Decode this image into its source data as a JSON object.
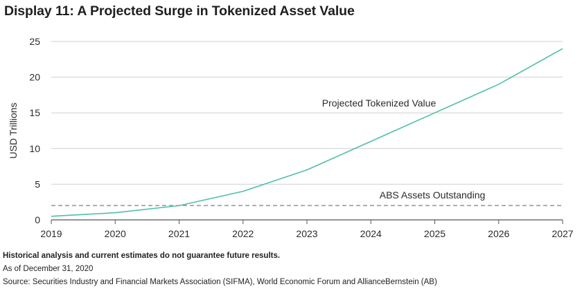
{
  "title": "Display 11: A Projected Surge in Tokenized Asset Value",
  "chart_data": {
    "type": "line",
    "title": "Display 11: A Projected Surge in Tokenized Asset Value",
    "xlabel": "",
    "ylabel": "USD Trillions",
    "x": [
      2019,
      2020,
      2021,
      2022,
      2023,
      2024,
      2025,
      2026,
      2027
    ],
    "xlim": [
      2019,
      2027
    ],
    "ylim": [
      0,
      25
    ],
    "yticks": [
      0,
      5,
      10,
      15,
      20,
      25
    ],
    "grid": "horizontal",
    "series": [
      {
        "name": "Projected Tokenized Value",
        "values": [
          0.5,
          1.0,
          2.0,
          4.0,
          7.0,
          11.0,
          15.0,
          19.0,
          24.0
        ],
        "color": "#4dbfa8",
        "style": "solid"
      },
      {
        "name": "ABS Assets Outstanding",
        "values": [
          2.0,
          2.0,
          2.0,
          2.0,
          2.0,
          2.0,
          2.0,
          2.0,
          2.0
        ],
        "color": "#9a9a9a",
        "style": "dashed"
      }
    ]
  },
  "footer": {
    "disclaimer": "Historical analysis and current estimates do not guarantee future results.",
    "as_of": "As of December 31, 2020",
    "source": "Source: Securities Industry and Financial Markets Association (SIFMA), World Economic Forum and AllianceBernstein (AB)"
  }
}
